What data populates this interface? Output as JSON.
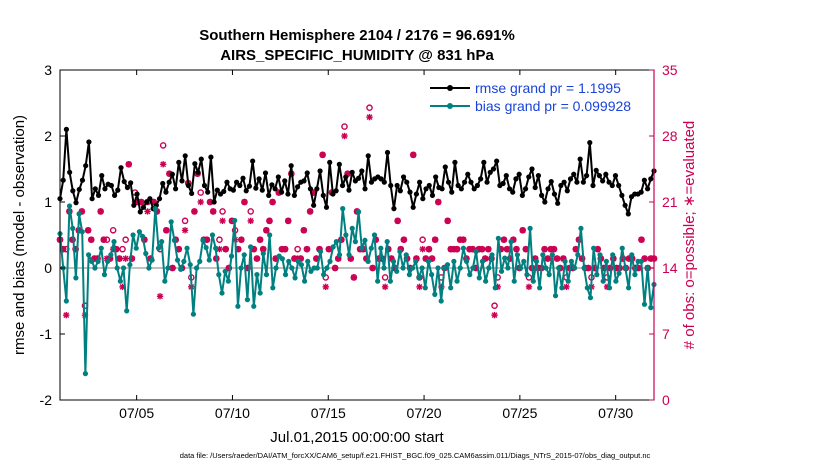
{
  "chart_data": {
    "type": "line",
    "title": "Southern Hemisphere 2104 / 2176 = 96.691%",
    "subtitle": "AIRS_SPECIFIC_HUMIDITY @ 831 hPa",
    "xlabel": "Jul.01,2015 00:00:00 start",
    "ylabel_left": "rmse and bias (model - observation)",
    "ylabel_right": "# of obs: o=possible; ∗=evaluated",
    "x_tick_labels": [
      "07/05",
      "07/10",
      "07/15",
      "07/20",
      "07/25",
      "07/30"
    ],
    "x_tick_days": [
      5,
      10,
      15,
      20,
      25,
      30
    ],
    "xlim_days": [
      1.0,
      32.0
    ],
    "ylim_left": [
      -2,
      3
    ],
    "ylim_right": [
      0,
      35
    ],
    "y_left_ticks": [
      -2,
      -1,
      0,
      1,
      2,
      3
    ],
    "y_right_ticks": [
      0,
      7,
      14,
      21,
      28,
      35
    ],
    "zero_line": true,
    "legend": {
      "position": "top-right",
      "entries": [
        "rmse grand pr = 1.1995",
        "bias grand pr = 0.099928"
      ]
    },
    "colors": {
      "rmse": "#000000",
      "bias": "#008080",
      "obs": "#cc0052",
      "zero": "#bfbfbf"
    },
    "series": [
      {
        "name": "rmse",
        "axis": "left",
        "values": [
          1.05,
          1.33,
          2.1,
          1.45,
          1.17,
          0.99,
          1.19,
          1.33,
          1.55,
          1.91,
          1.05,
          1.2,
          1.1,
          1.4,
          1.2,
          1.27,
          1.25,
          1.1,
          1.18,
          1.52,
          1.31,
          1.22,
          1.29,
          0.95,
          1.12,
          0.85,
          0.92,
          1.0,
          1.05,
          0.9,
          0.95,
          1.05,
          1.28,
          1.15,
          1.3,
          1.42,
          1.2,
          1.6,
          1.32,
          1.7,
          1.25,
          1.13,
          1.58,
          1.45,
          1.65,
          1.25,
          1.15,
          1.68,
          1.0,
          1.18,
          1.12,
          1.16,
          1.3,
          1.2,
          1.18,
          1.3,
          1.25,
          1.36,
          1.17,
          1.24,
          1.62,
          1.21,
          1.35,
          1.18,
          1.44,
          1.1,
          1.26,
          1.2,
          1.38,
          1.15,
          1.32,
          1.12,
          1.55,
          1.1,
          1.23,
          1.3,
          1.32,
          1.44,
          1.2,
          0.95,
          1.2,
          1.47,
          1.1,
          0.92,
          1.6,
          1.12,
          1.17,
          1.57,
          1.25,
          1.38,
          1.18,
          1.45,
          1.32,
          1.36,
          1.47,
          1.2,
          1.7,
          1.3,
          1.35,
          1.38,
          1.35,
          1.3,
          1.75,
          1.25,
          0.9,
          1.25,
          1.17,
          1.38,
          1.3,
          1.15,
          0.92,
          1.12,
          1.3,
          1.05,
          1.2,
          1.25,
          1.1,
          1.38,
          1.22,
          1.2,
          1.53,
          1.3,
          1.15,
          1.6,
          1.25,
          1.2,
          1.3,
          1.42,
          1.3,
          1.2,
          1.25,
          1.35,
          1.6,
          1.3,
          1.45,
          1.5,
          1.62,
          1.25,
          1.28,
          1.4,
          1.2,
          1.15,
          1.35,
          1.42,
          1.1,
          1.2,
          1.38,
          1.5,
          1.22,
          1.4,
          1.1,
          1.0,
          1.2,
          1.31,
          1.12,
          0.98,
          1.25,
          1.3,
          1.17,
          1.35,
          1.42,
          1.3,
          1.65,
          1.3,
          1.4,
          1.9,
          1.25,
          1.48,
          1.4,
          1.32,
          1.42,
          1.3,
          1.25,
          1.4,
          1.25,
          1.1,
          0.95,
          0.82,
          1.08,
          1.12,
          1.12,
          1.15,
          1.33,
          1.2,
          1.35,
          1.47
        ]
      },
      {
        "name": "bias",
        "axis": "left",
        "values": [
          0.52,
          0.0,
          -0.5,
          0.94,
          0.6,
          -0.15,
          0.82,
          0.55,
          -1.6,
          0.2,
          0.1,
          0.0,
          0.1,
          0.3,
          -0.1,
          0.1,
          0.2,
          0.4,
          0.0,
          -0.2,
          0.0,
          -0.65,
          0.05,
          0.5,
          0.3,
          0.55,
          0.48,
          0.22,
          0.0,
          0.12,
          0.9,
          0.3,
          0.4,
          -0.2,
          0.0,
          0.7,
          0.42,
          0.12,
          -0.02,
          0.1,
          0.3,
          0.05,
          -0.7,
          0.0,
          0.1,
          0.42,
          0.31,
          0.12,
          0.5,
          0.3,
          -0.1,
          -0.38,
          -0.05,
          -0.2,
          0.18,
          0.72,
          -0.58,
          0.0,
          0.2,
          -0.48,
          0.32,
          -0.58,
          -0.1,
          -0.38,
          0.22,
          -0.1,
          0.5,
          -0.3,
          0.0,
          0.18,
          0.14,
          -0.1,
          0.1,
          0.0,
          -0.15,
          0.1,
          0.05,
          -0.2,
          0.1,
          -0.05,
          0.0,
          0.0,
          0.25,
          -0.1,
          0.0,
          0.1,
          0.32,
          0.4,
          0.2,
          0.9,
          0.5,
          0.2,
          0.6,
          0.4,
          0.85,
          0.3,
          0.42,
          0.1,
          0.3,
          0.5,
          -0.2,
          0.3,
          0.0,
          0.4,
          -0.2,
          0.1,
          -0.05,
          0.25,
          0.0,
          0.2,
          -0.1,
          0.0,
          0.1,
          -0.15,
          0.0,
          -0.3,
          0.1,
          -0.1,
          -0.4,
          0.0,
          -0.5,
          0.0,
          0.05,
          -0.3,
          0.1,
          -0.2,
          0.0,
          0.3,
          0.1,
          -0.1,
          0.0,
          0.25,
          -0.15,
          0.1,
          -0.2,
          0.0,
          0.2,
          -0.3,
          0.45,
          -0.05,
          0.15,
          0.0,
          0.4,
          -0.2,
          0.2,
          0.0,
          0.1,
          -0.1,
          0.6,
          -0.2,
          0.1,
          -0.3,
          0.2,
          0.0,
          -0.1,
          0.2,
          -0.42,
          0.0,
          -0.3,
          0.1,
          -0.2,
          0.1,
          0.0,
          0.2,
          0.6,
          0.0,
          -0.3,
          -0.45,
          0.3,
          -0.1,
          0.2,
          -0.2,
          0.1,
          -0.3,
          0.2,
          -0.2,
          -0.08,
          0.3,
          0.0,
          -0.3,
          0.2,
          -0.1,
          0.1,
          0.1,
          -0.55,
          0.0,
          -0.6,
          -0.25
        ]
      },
      {
        "name": "obs possible",
        "axis": "right",
        "marker": "o",
        "values": [
          17,
          16,
          16,
          20,
          17,
          16,
          18,
          20,
          10,
          18,
          17,
          15,
          15,
          20,
          17,
          17,
          15,
          18,
          16,
          15,
          16,
          17,
          25,
          15,
          22,
          21,
          21,
          17,
          21,
          15,
          21,
          20,
          16,
          27,
          18,
          24,
          14,
          17,
          16,
          14,
          19,
          23,
          13,
          20,
          24,
          22,
          17,
          17,
          21,
          20,
          15,
          17,
          20,
          16,
          14,
          19,
          18,
          16,
          17,
          21,
          14,
          20,
          16,
          15,
          17,
          16,
          18,
          19,
          21,
          15,
          22,
          16,
          16,
          19,
          24,
          15,
          16,
          15,
          18,
          16,
          20,
          22,
          15,
          16,
          26,
          13,
          16,
          22,
          14,
          15,
          17,
          29,
          24,
          15,
          13,
          20,
          16,
          16,
          15,
          31,
          14,
          17,
          15,
          15,
          13,
          16,
          15,
          14,
          19,
          16,
          17,
          15,
          14,
          26,
          15,
          13,
          17,
          15,
          16,
          15,
          17,
          21,
          13,
          14,
          19,
          16,
          16,
          16,
          17,
          17,
          15,
          16,
          16,
          14,
          16,
          16,
          15,
          16,
          15,
          10,
          13,
          16,
          17,
          16,
          15,
          17,
          16,
          14,
          18,
          16,
          13,
          14,
          15,
          14,
          14,
          16,
          15,
          16,
          16,
          15,
          14,
          15,
          13,
          14,
          14,
          16,
          17,
          15,
          14,
          14,
          13,
          14,
          16,
          15,
          14,
          13,
          14,
          15,
          14,
          14,
          15,
          14,
          15,
          15,
          14,
          14,
          17,
          15,
          14,
          15,
          15
        ]
      },
      {
        "name": "obs evaluated",
        "axis": "right",
        "marker": "*",
        "values": [
          17,
          16,
          9,
          20,
          17,
          16,
          18,
          20,
          9,
          18,
          17,
          15,
          15,
          20,
          17,
          15,
          15,
          16,
          16,
          15,
          12,
          15,
          25,
          15,
          21,
          21,
          21,
          17,
          20,
          15,
          21,
          20,
          11,
          25,
          18,
          24,
          14,
          17,
          16,
          14,
          18,
          23,
          12,
          20,
          24,
          21,
          17,
          17,
          21,
          20,
          15,
          16,
          19,
          16,
          14,
          19,
          17,
          16,
          17,
          21,
          14,
          19,
          16,
          15,
          17,
          16,
          18,
          19,
          21,
          15,
          22,
          16,
          16,
          19,
          24,
          15,
          15,
          15,
          18,
          16,
          20,
          22,
          15,
          16,
          26,
          12,
          16,
          22,
          14,
          15,
          17,
          28,
          24,
          15,
          13,
          20,
          16,
          16,
          15,
          30,
          14,
          17,
          15,
          15,
          12,
          16,
          15,
          14,
          19,
          16,
          17,
          15,
          14,
          26,
          15,
          12,
          16,
          15,
          16,
          15,
          17,
          21,
          12,
          14,
          19,
          16,
          16,
          16,
          17,
          17,
          15,
          16,
          16,
          14,
          16,
          16,
          15,
          16,
          15,
          9,
          12,
          16,
          17,
          16,
          15,
          17,
          16,
          14,
          18,
          16,
          12,
          14,
          15,
          14,
          14,
          16,
          15,
          16,
          16,
          15,
          14,
          15,
          12,
          14,
          14,
          16,
          17,
          15,
          14,
          14,
          12,
          14,
          16,
          15,
          14,
          12,
          14,
          15,
          14,
          14,
          15,
          14,
          15,
          15,
          14,
          14,
          17,
          15,
          14,
          15,
          15
        ]
      }
    ]
  },
  "footer": "data file: /Users/raeder/DAI/ATM_forcXX/CAM6_setup/f.e21.FHIST_BGC.f09_025.CAM6assim.011/Diags_NTrS_2015-07/obs_diag_output.nc"
}
